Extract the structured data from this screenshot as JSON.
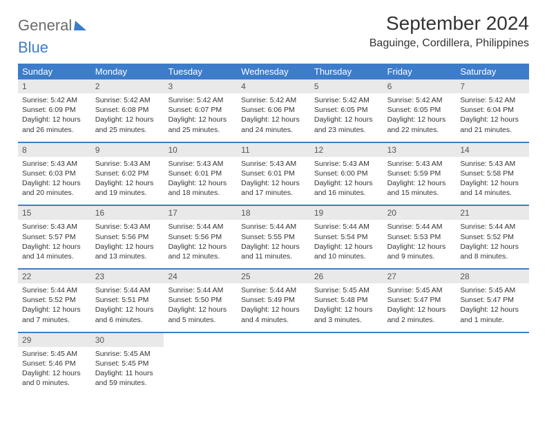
{
  "brand": {
    "part1": "General",
    "part2": "Blue"
  },
  "title": "September 2024",
  "location": "Baguinge, Cordillera, Philippines",
  "colors": {
    "header_bg": "#3d7cc9",
    "header_text": "#ffffff",
    "daynum_bg": "#e9e9e9",
    "text": "#333333",
    "logo_gray": "#6b6b6b",
    "logo_blue": "#3d7cc9",
    "page_bg": "#ffffff"
  },
  "day_headers": [
    "Sunday",
    "Monday",
    "Tuesday",
    "Wednesday",
    "Thursday",
    "Friday",
    "Saturday"
  ],
  "weeks": [
    [
      {
        "n": "1",
        "sunrise": "Sunrise: 5:42 AM",
        "sunset": "Sunset: 6:09 PM",
        "d1": "Daylight: 12 hours",
        "d2": "and 26 minutes."
      },
      {
        "n": "2",
        "sunrise": "Sunrise: 5:42 AM",
        "sunset": "Sunset: 6:08 PM",
        "d1": "Daylight: 12 hours",
        "d2": "and 25 minutes."
      },
      {
        "n": "3",
        "sunrise": "Sunrise: 5:42 AM",
        "sunset": "Sunset: 6:07 PM",
        "d1": "Daylight: 12 hours",
        "d2": "and 25 minutes."
      },
      {
        "n": "4",
        "sunrise": "Sunrise: 5:42 AM",
        "sunset": "Sunset: 6:06 PM",
        "d1": "Daylight: 12 hours",
        "d2": "and 24 minutes."
      },
      {
        "n": "5",
        "sunrise": "Sunrise: 5:42 AM",
        "sunset": "Sunset: 6:05 PM",
        "d1": "Daylight: 12 hours",
        "d2": "and 23 minutes."
      },
      {
        "n": "6",
        "sunrise": "Sunrise: 5:42 AM",
        "sunset": "Sunset: 6:05 PM",
        "d1": "Daylight: 12 hours",
        "d2": "and 22 minutes."
      },
      {
        "n": "7",
        "sunrise": "Sunrise: 5:42 AM",
        "sunset": "Sunset: 6:04 PM",
        "d1": "Daylight: 12 hours",
        "d2": "and 21 minutes."
      }
    ],
    [
      {
        "n": "8",
        "sunrise": "Sunrise: 5:43 AM",
        "sunset": "Sunset: 6:03 PM",
        "d1": "Daylight: 12 hours",
        "d2": "and 20 minutes."
      },
      {
        "n": "9",
        "sunrise": "Sunrise: 5:43 AM",
        "sunset": "Sunset: 6:02 PM",
        "d1": "Daylight: 12 hours",
        "d2": "and 19 minutes."
      },
      {
        "n": "10",
        "sunrise": "Sunrise: 5:43 AM",
        "sunset": "Sunset: 6:01 PM",
        "d1": "Daylight: 12 hours",
        "d2": "and 18 minutes."
      },
      {
        "n": "11",
        "sunrise": "Sunrise: 5:43 AM",
        "sunset": "Sunset: 6:01 PM",
        "d1": "Daylight: 12 hours",
        "d2": "and 17 minutes."
      },
      {
        "n": "12",
        "sunrise": "Sunrise: 5:43 AM",
        "sunset": "Sunset: 6:00 PM",
        "d1": "Daylight: 12 hours",
        "d2": "and 16 minutes."
      },
      {
        "n": "13",
        "sunrise": "Sunrise: 5:43 AM",
        "sunset": "Sunset: 5:59 PM",
        "d1": "Daylight: 12 hours",
        "d2": "and 15 minutes."
      },
      {
        "n": "14",
        "sunrise": "Sunrise: 5:43 AM",
        "sunset": "Sunset: 5:58 PM",
        "d1": "Daylight: 12 hours",
        "d2": "and 14 minutes."
      }
    ],
    [
      {
        "n": "15",
        "sunrise": "Sunrise: 5:43 AM",
        "sunset": "Sunset: 5:57 PM",
        "d1": "Daylight: 12 hours",
        "d2": "and 14 minutes."
      },
      {
        "n": "16",
        "sunrise": "Sunrise: 5:43 AM",
        "sunset": "Sunset: 5:56 PM",
        "d1": "Daylight: 12 hours",
        "d2": "and 13 minutes."
      },
      {
        "n": "17",
        "sunrise": "Sunrise: 5:44 AM",
        "sunset": "Sunset: 5:56 PM",
        "d1": "Daylight: 12 hours",
        "d2": "and 12 minutes."
      },
      {
        "n": "18",
        "sunrise": "Sunrise: 5:44 AM",
        "sunset": "Sunset: 5:55 PM",
        "d1": "Daylight: 12 hours",
        "d2": "and 11 minutes."
      },
      {
        "n": "19",
        "sunrise": "Sunrise: 5:44 AM",
        "sunset": "Sunset: 5:54 PM",
        "d1": "Daylight: 12 hours",
        "d2": "and 10 minutes."
      },
      {
        "n": "20",
        "sunrise": "Sunrise: 5:44 AM",
        "sunset": "Sunset: 5:53 PM",
        "d1": "Daylight: 12 hours",
        "d2": "and 9 minutes."
      },
      {
        "n": "21",
        "sunrise": "Sunrise: 5:44 AM",
        "sunset": "Sunset: 5:52 PM",
        "d1": "Daylight: 12 hours",
        "d2": "and 8 minutes."
      }
    ],
    [
      {
        "n": "22",
        "sunrise": "Sunrise: 5:44 AM",
        "sunset": "Sunset: 5:52 PM",
        "d1": "Daylight: 12 hours",
        "d2": "and 7 minutes."
      },
      {
        "n": "23",
        "sunrise": "Sunrise: 5:44 AM",
        "sunset": "Sunset: 5:51 PM",
        "d1": "Daylight: 12 hours",
        "d2": "and 6 minutes."
      },
      {
        "n": "24",
        "sunrise": "Sunrise: 5:44 AM",
        "sunset": "Sunset: 5:50 PM",
        "d1": "Daylight: 12 hours",
        "d2": "and 5 minutes."
      },
      {
        "n": "25",
        "sunrise": "Sunrise: 5:44 AM",
        "sunset": "Sunset: 5:49 PM",
        "d1": "Daylight: 12 hours",
        "d2": "and 4 minutes."
      },
      {
        "n": "26",
        "sunrise": "Sunrise: 5:45 AM",
        "sunset": "Sunset: 5:48 PM",
        "d1": "Daylight: 12 hours",
        "d2": "and 3 minutes."
      },
      {
        "n": "27",
        "sunrise": "Sunrise: 5:45 AM",
        "sunset": "Sunset: 5:47 PM",
        "d1": "Daylight: 12 hours",
        "d2": "and 2 minutes."
      },
      {
        "n": "28",
        "sunrise": "Sunrise: 5:45 AM",
        "sunset": "Sunset: 5:47 PM",
        "d1": "Daylight: 12 hours",
        "d2": "and 1 minute."
      }
    ],
    [
      {
        "n": "29",
        "sunrise": "Sunrise: 5:45 AM",
        "sunset": "Sunset: 5:46 PM",
        "d1": "Daylight: 12 hours",
        "d2": "and 0 minutes."
      },
      {
        "n": "30",
        "sunrise": "Sunrise: 5:45 AM",
        "sunset": "Sunset: 5:45 PM",
        "d1": "Daylight: 11 hours",
        "d2": "and 59 minutes."
      },
      null,
      null,
      null,
      null,
      null
    ]
  ]
}
